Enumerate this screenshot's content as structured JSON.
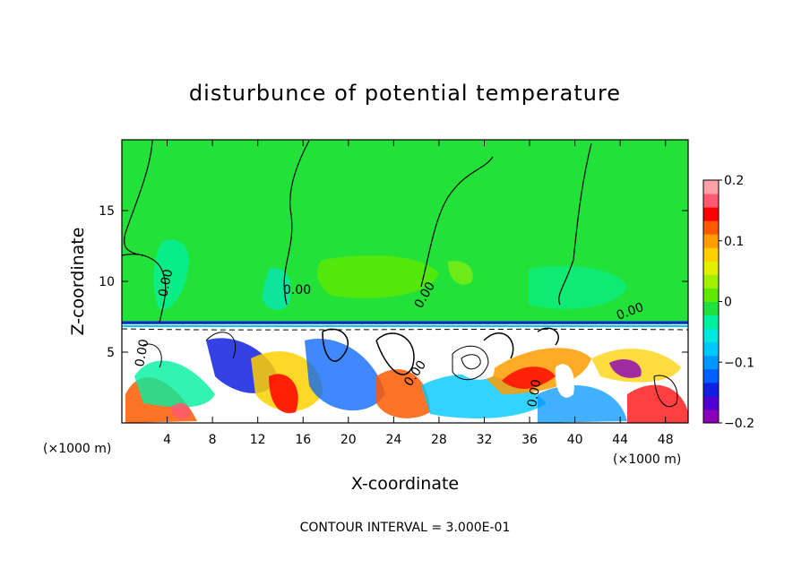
{
  "chart_data": {
    "type": "heatmap",
    "title": "disturbunce of potential temperature",
    "xlabel": "X-coordinate",
    "ylabel": "Z-coordinate",
    "x_unit_note": "(×1000 m)",
    "x_unit_note_right": "(×1000 m)",
    "xlim": [
      0,
      50
    ],
    "ylim": [
      0,
      20
    ],
    "x_ticks": [
      4,
      8,
      12,
      16,
      20,
      24,
      28,
      32,
      36,
      40,
      44,
      48
    ],
    "y_ticks": [
      5,
      10,
      15
    ],
    "colorbar": {
      "range": [
        -0.2,
        0.2
      ],
      "tick_values": [
        -0.2,
        -0.1,
        0,
        0.1,
        0.2
      ],
      "tick_labels": [
        "−0.2",
        "−0.1",
        "0",
        "0.1",
        "0.2"
      ],
      "colors": [
        "#8a00b8",
        "#5000d0",
        "#1020e0",
        "#0060ff",
        "#0096ff",
        "#00c8ff",
        "#00e8e0",
        "#00f0a0",
        "#20e040",
        "#60e800",
        "#a0f000",
        "#e0f000",
        "#ffd000",
        "#ff9c00",
        "#ff5a00",
        "#ff0000",
        "#ff5a70",
        "#ffa0a8"
      ]
    },
    "contour_labels": [
      "0.00",
      "0.00",
      "0.00",
      "0.00",
      "0.00",
      "0.00",
      "0.00"
    ],
    "annotation": "CONTOUR INTERVAL = 3.000E-01"
  }
}
